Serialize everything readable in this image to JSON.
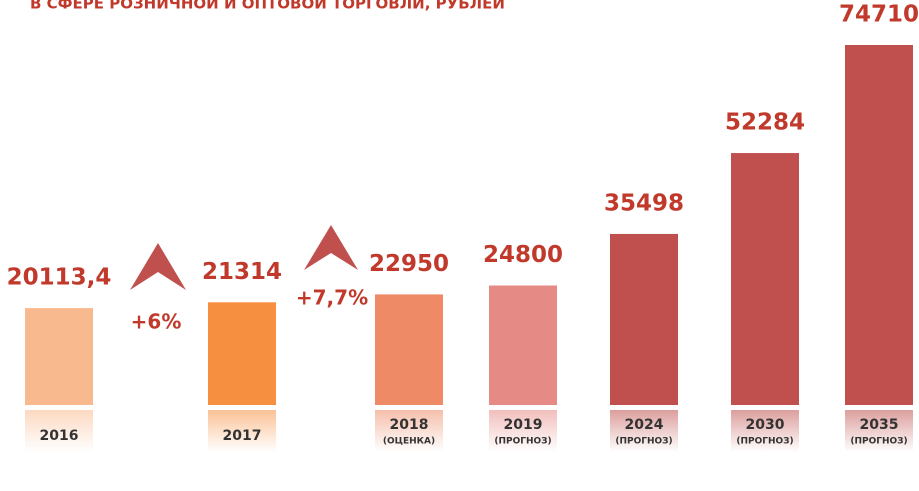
{
  "chart_data": {
    "type": "bar",
    "title": "В СФЕРЕ РОЗНИЧНОЙ И ОПТОВОЙ ТОРГОВЛИ, РУБЛЕЙ",
    "categories": [
      "2016",
      "2017",
      "2018",
      "2019",
      "2024",
      "2030",
      "2035"
    ],
    "category_notes": [
      null,
      null,
      "(ОЦЕНКА)",
      "(ПРОГНОЗ)",
      "(ПРОГНОЗ)",
      "(ПРОГНОЗ)",
      "(ПРОГНОЗ)"
    ],
    "values": [
      20113.4,
      21314,
      22950,
      24800,
      35498,
      52284,
      74710
    ],
    "value_labels": [
      "20113,4",
      "21314",
      "22950",
      "24800",
      "35498",
      "52284",
      "74710"
    ],
    "colors": [
      "#f9b98e",
      "#f78f40",
      "#ee8a66",
      "#e58a85",
      "#c0504d",
      "#c0504d",
      "#c0504d"
    ],
    "annotations": [
      "+6%",
      "+7,7%"
    ]
  }
}
